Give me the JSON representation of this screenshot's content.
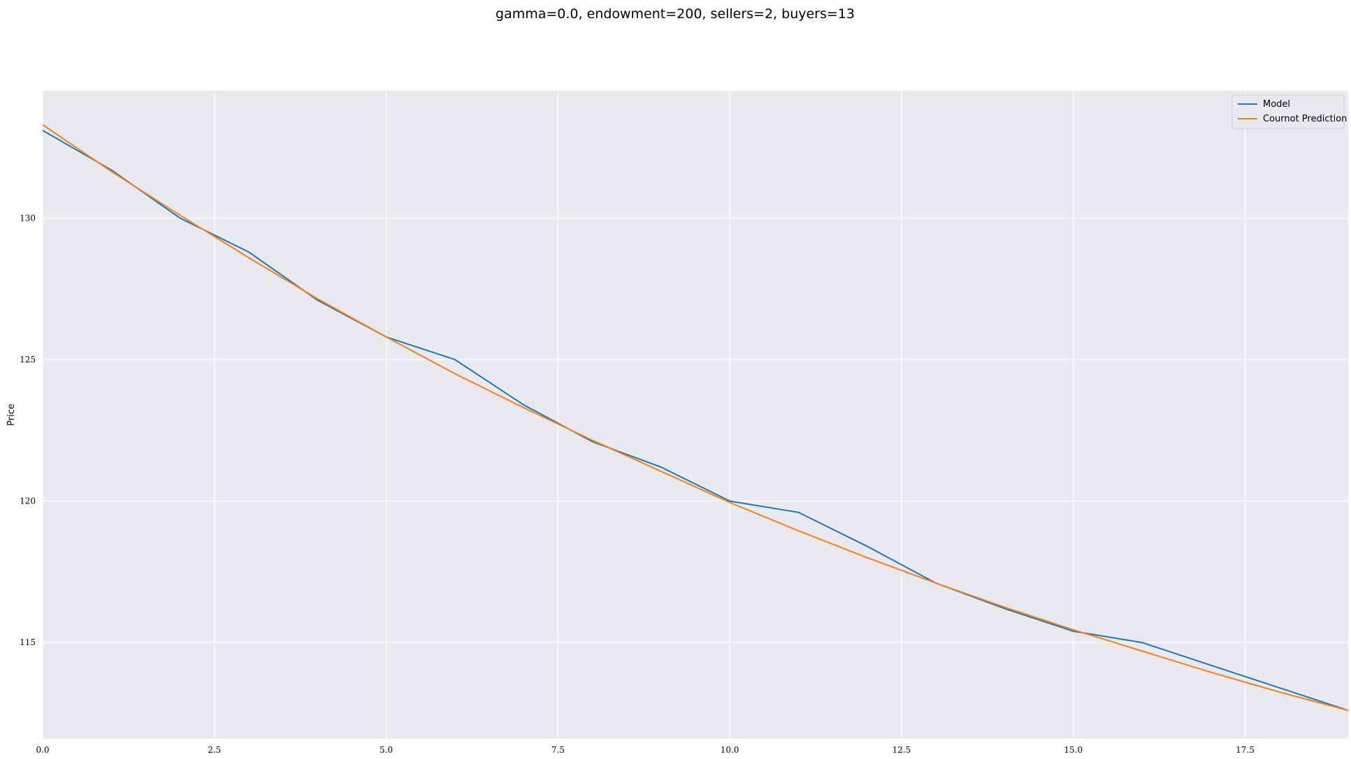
{
  "chart_data": {
    "type": "line",
    "title": "gamma=0.0, endowment=200, sellers=2, buyers=13",
    "xlabel": "",
    "ylabel": "Price",
    "xlim": [
      0,
      19
    ],
    "ylim": [
      111.6,
      134.5
    ],
    "xticks": [
      "0.0",
      "2.5",
      "5.0",
      "7.5",
      "10.0",
      "12.5",
      "15.0",
      "17.5"
    ],
    "yticks": [
      "115",
      "120",
      "125",
      "130"
    ],
    "grid": true,
    "legend_position": "top-right",
    "x": [
      0,
      1,
      2,
      3,
      4,
      5,
      6,
      7,
      8,
      9,
      10,
      11,
      12,
      13,
      14,
      15,
      16,
      17,
      18,
      19
    ],
    "series": [
      {
        "name": "Model",
        "color": "#1f77b4",
        "values": [
          133.1,
          131.7,
          130.0,
          128.8,
          127.1,
          125.8,
          125.0,
          123.4,
          122.1,
          121.2,
          120.0,
          119.6,
          118.4,
          117.1,
          116.2,
          115.4,
          115.0,
          114.2,
          113.4,
          112.6
        ]
      },
      {
        "name": "Cournot Prediction",
        "color": "#ff7f0e",
        "values": [
          133.3,
          131.65,
          130.1,
          128.6,
          127.15,
          125.8,
          124.5,
          123.3,
          122.15,
          121.05,
          119.95,
          118.95,
          118.0,
          117.1,
          116.25,
          115.45,
          114.7,
          113.95,
          113.25,
          112.6
        ]
      }
    ]
  }
}
